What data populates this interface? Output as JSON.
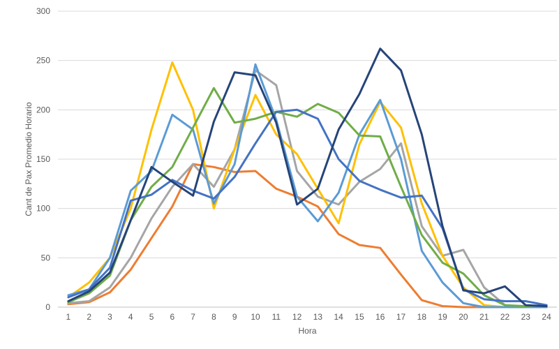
{
  "chart_data": {
    "type": "line",
    "title": "",
    "xlabel": "Hora",
    "ylabel": "Cant de Pax Promedio Horario",
    "categories": [
      "1",
      "2",
      "3",
      "4",
      "5",
      "6",
      "7",
      "8",
      "9",
      "10",
      "11",
      "12",
      "13",
      "14",
      "15",
      "16",
      "17",
      "18",
      "19",
      "20",
      "21",
      "22",
      "23",
      "24"
    ],
    "y_ticks": [
      "0",
      "50",
      "100",
      "150",
      "200",
      "250",
      "300"
    ],
    "ylim": [
      0,
      300
    ],
    "grid": true,
    "legend": "none",
    "series": [
      {
        "color": "#ED7D31",
        "values": [
          3,
          5,
          15,
          38,
          70,
          102,
          145,
          142,
          137,
          138,
          120,
          112,
          102,
          74,
          63,
          60,
          33,
          7,
          1,
          0,
          0,
          0,
          0,
          0
        ]
      },
      {
        "color": "#A5A5A5",
        "values": [
          4,
          6,
          20,
          50,
          90,
          122,
          145,
          122,
          160,
          240,
          225,
          138,
          112,
          104,
          127,
          140,
          166,
          82,
          52,
          58,
          20,
          2,
          0,
          0
        ]
      },
      {
        "color": "#FFC000",
        "values": [
          10,
          25,
          50,
          100,
          180,
          248,
          200,
          100,
          160,
          215,
          175,
          155,
          120,
          85,
          165,
          208,
          182,
          105,
          52,
          20,
          2,
          0,
          0,
          0
        ]
      },
      {
        "color": "#5B9BD5",
        "values": [
          12,
          18,
          50,
          118,
          138,
          195,
          180,
          105,
          145,
          246,
          190,
          112,
          87,
          116,
          175,
          210,
          150,
          57,
          25,
          4,
          0,
          0,
          0,
          0
        ]
      },
      {
        "color": "#70AD47",
        "values": [
          5,
          14,
          32,
          88,
          122,
          142,
          182,
          222,
          187,
          191,
          198,
          193,
          206,
          197,
          174,
          173,
          122,
          73,
          45,
          34,
          12,
          2,
          1,
          2
        ]
      },
      {
        "color": "#4472C4",
        "values": [
          10,
          18,
          40,
          108,
          114,
          129,
          118,
          110,
          132,
          166,
          198,
          200,
          191,
          150,
          128,
          119,
          111,
          113,
          80,
          18,
          8,
          6,
          6,
          2
        ]
      },
      {
        "color": "#264478",
        "values": [
          6,
          16,
          35,
          88,
          142,
          127,
          113,
          188,
          238,
          235,
          187,
          104,
          120,
          180,
          216,
          262,
          240,
          175,
          82,
          17,
          14,
          21,
          2,
          1
        ]
      }
    ]
  }
}
